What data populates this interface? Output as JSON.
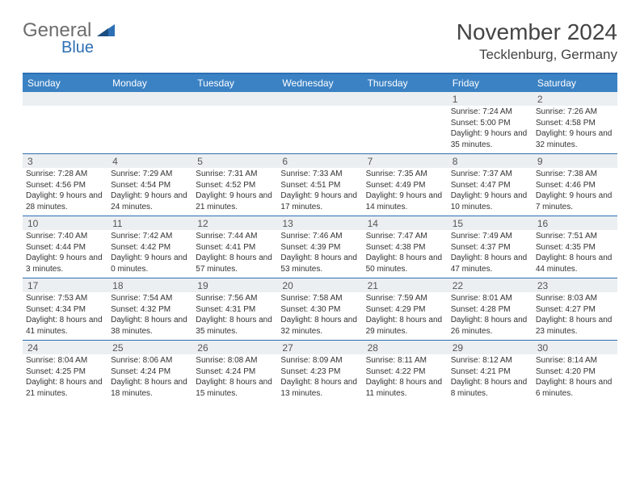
{
  "logo": {
    "text1": "General",
    "text2": "Blue",
    "color1": "#6d6d6d",
    "color2": "#2d6fb4"
  },
  "title": "November 2024",
  "location": "Tecklenburg, Germany",
  "header_bg": "#3b82c4",
  "daynum_bg": "#eceff1",
  "border_color": "#2d6fb4",
  "daynames": [
    "Sunday",
    "Monday",
    "Tuesday",
    "Wednesday",
    "Thursday",
    "Friday",
    "Saturday"
  ],
  "weeks": [
    {
      "nums": [
        "",
        "",
        "",
        "",
        "",
        "1",
        "2"
      ],
      "details": [
        "",
        "",
        "",
        "",
        "",
        "Sunrise: 7:24 AM\nSunset: 5:00 PM\nDaylight: 9 hours and 35 minutes.",
        "Sunrise: 7:26 AM\nSunset: 4:58 PM\nDaylight: 9 hours and 32 minutes."
      ]
    },
    {
      "nums": [
        "3",
        "4",
        "5",
        "6",
        "7",
        "8",
        "9"
      ],
      "details": [
        "Sunrise: 7:28 AM\nSunset: 4:56 PM\nDaylight: 9 hours and 28 minutes.",
        "Sunrise: 7:29 AM\nSunset: 4:54 PM\nDaylight: 9 hours and 24 minutes.",
        "Sunrise: 7:31 AM\nSunset: 4:52 PM\nDaylight: 9 hours and 21 minutes.",
        "Sunrise: 7:33 AM\nSunset: 4:51 PM\nDaylight: 9 hours and 17 minutes.",
        "Sunrise: 7:35 AM\nSunset: 4:49 PM\nDaylight: 9 hours and 14 minutes.",
        "Sunrise: 7:37 AM\nSunset: 4:47 PM\nDaylight: 9 hours and 10 minutes.",
        "Sunrise: 7:38 AM\nSunset: 4:46 PM\nDaylight: 9 hours and 7 minutes."
      ]
    },
    {
      "nums": [
        "10",
        "11",
        "12",
        "13",
        "14",
        "15",
        "16"
      ],
      "details": [
        "Sunrise: 7:40 AM\nSunset: 4:44 PM\nDaylight: 9 hours and 3 minutes.",
        "Sunrise: 7:42 AM\nSunset: 4:42 PM\nDaylight: 9 hours and 0 minutes.",
        "Sunrise: 7:44 AM\nSunset: 4:41 PM\nDaylight: 8 hours and 57 minutes.",
        "Sunrise: 7:46 AM\nSunset: 4:39 PM\nDaylight: 8 hours and 53 minutes.",
        "Sunrise: 7:47 AM\nSunset: 4:38 PM\nDaylight: 8 hours and 50 minutes.",
        "Sunrise: 7:49 AM\nSunset: 4:37 PM\nDaylight: 8 hours and 47 minutes.",
        "Sunrise: 7:51 AM\nSunset: 4:35 PM\nDaylight: 8 hours and 44 minutes."
      ]
    },
    {
      "nums": [
        "17",
        "18",
        "19",
        "20",
        "21",
        "22",
        "23"
      ],
      "details": [
        "Sunrise: 7:53 AM\nSunset: 4:34 PM\nDaylight: 8 hours and 41 minutes.",
        "Sunrise: 7:54 AM\nSunset: 4:32 PM\nDaylight: 8 hours and 38 minutes.",
        "Sunrise: 7:56 AM\nSunset: 4:31 PM\nDaylight: 8 hours and 35 minutes.",
        "Sunrise: 7:58 AM\nSunset: 4:30 PM\nDaylight: 8 hours and 32 minutes.",
        "Sunrise: 7:59 AM\nSunset: 4:29 PM\nDaylight: 8 hours and 29 minutes.",
        "Sunrise: 8:01 AM\nSunset: 4:28 PM\nDaylight: 8 hours and 26 minutes.",
        "Sunrise: 8:03 AM\nSunset: 4:27 PM\nDaylight: 8 hours and 23 minutes."
      ]
    },
    {
      "nums": [
        "24",
        "25",
        "26",
        "27",
        "28",
        "29",
        "30"
      ],
      "details": [
        "Sunrise: 8:04 AM\nSunset: 4:25 PM\nDaylight: 8 hours and 21 minutes.",
        "Sunrise: 8:06 AM\nSunset: 4:24 PM\nDaylight: 8 hours and 18 minutes.",
        "Sunrise: 8:08 AM\nSunset: 4:24 PM\nDaylight: 8 hours and 15 minutes.",
        "Sunrise: 8:09 AM\nSunset: 4:23 PM\nDaylight: 8 hours and 13 minutes.",
        "Sunrise: 8:11 AM\nSunset: 4:22 PM\nDaylight: 8 hours and 11 minutes.",
        "Sunrise: 8:12 AM\nSunset: 4:21 PM\nDaylight: 8 hours and 8 minutes.",
        "Sunrise: 8:14 AM\nSunset: 4:20 PM\nDaylight: 8 hours and 6 minutes."
      ]
    }
  ]
}
